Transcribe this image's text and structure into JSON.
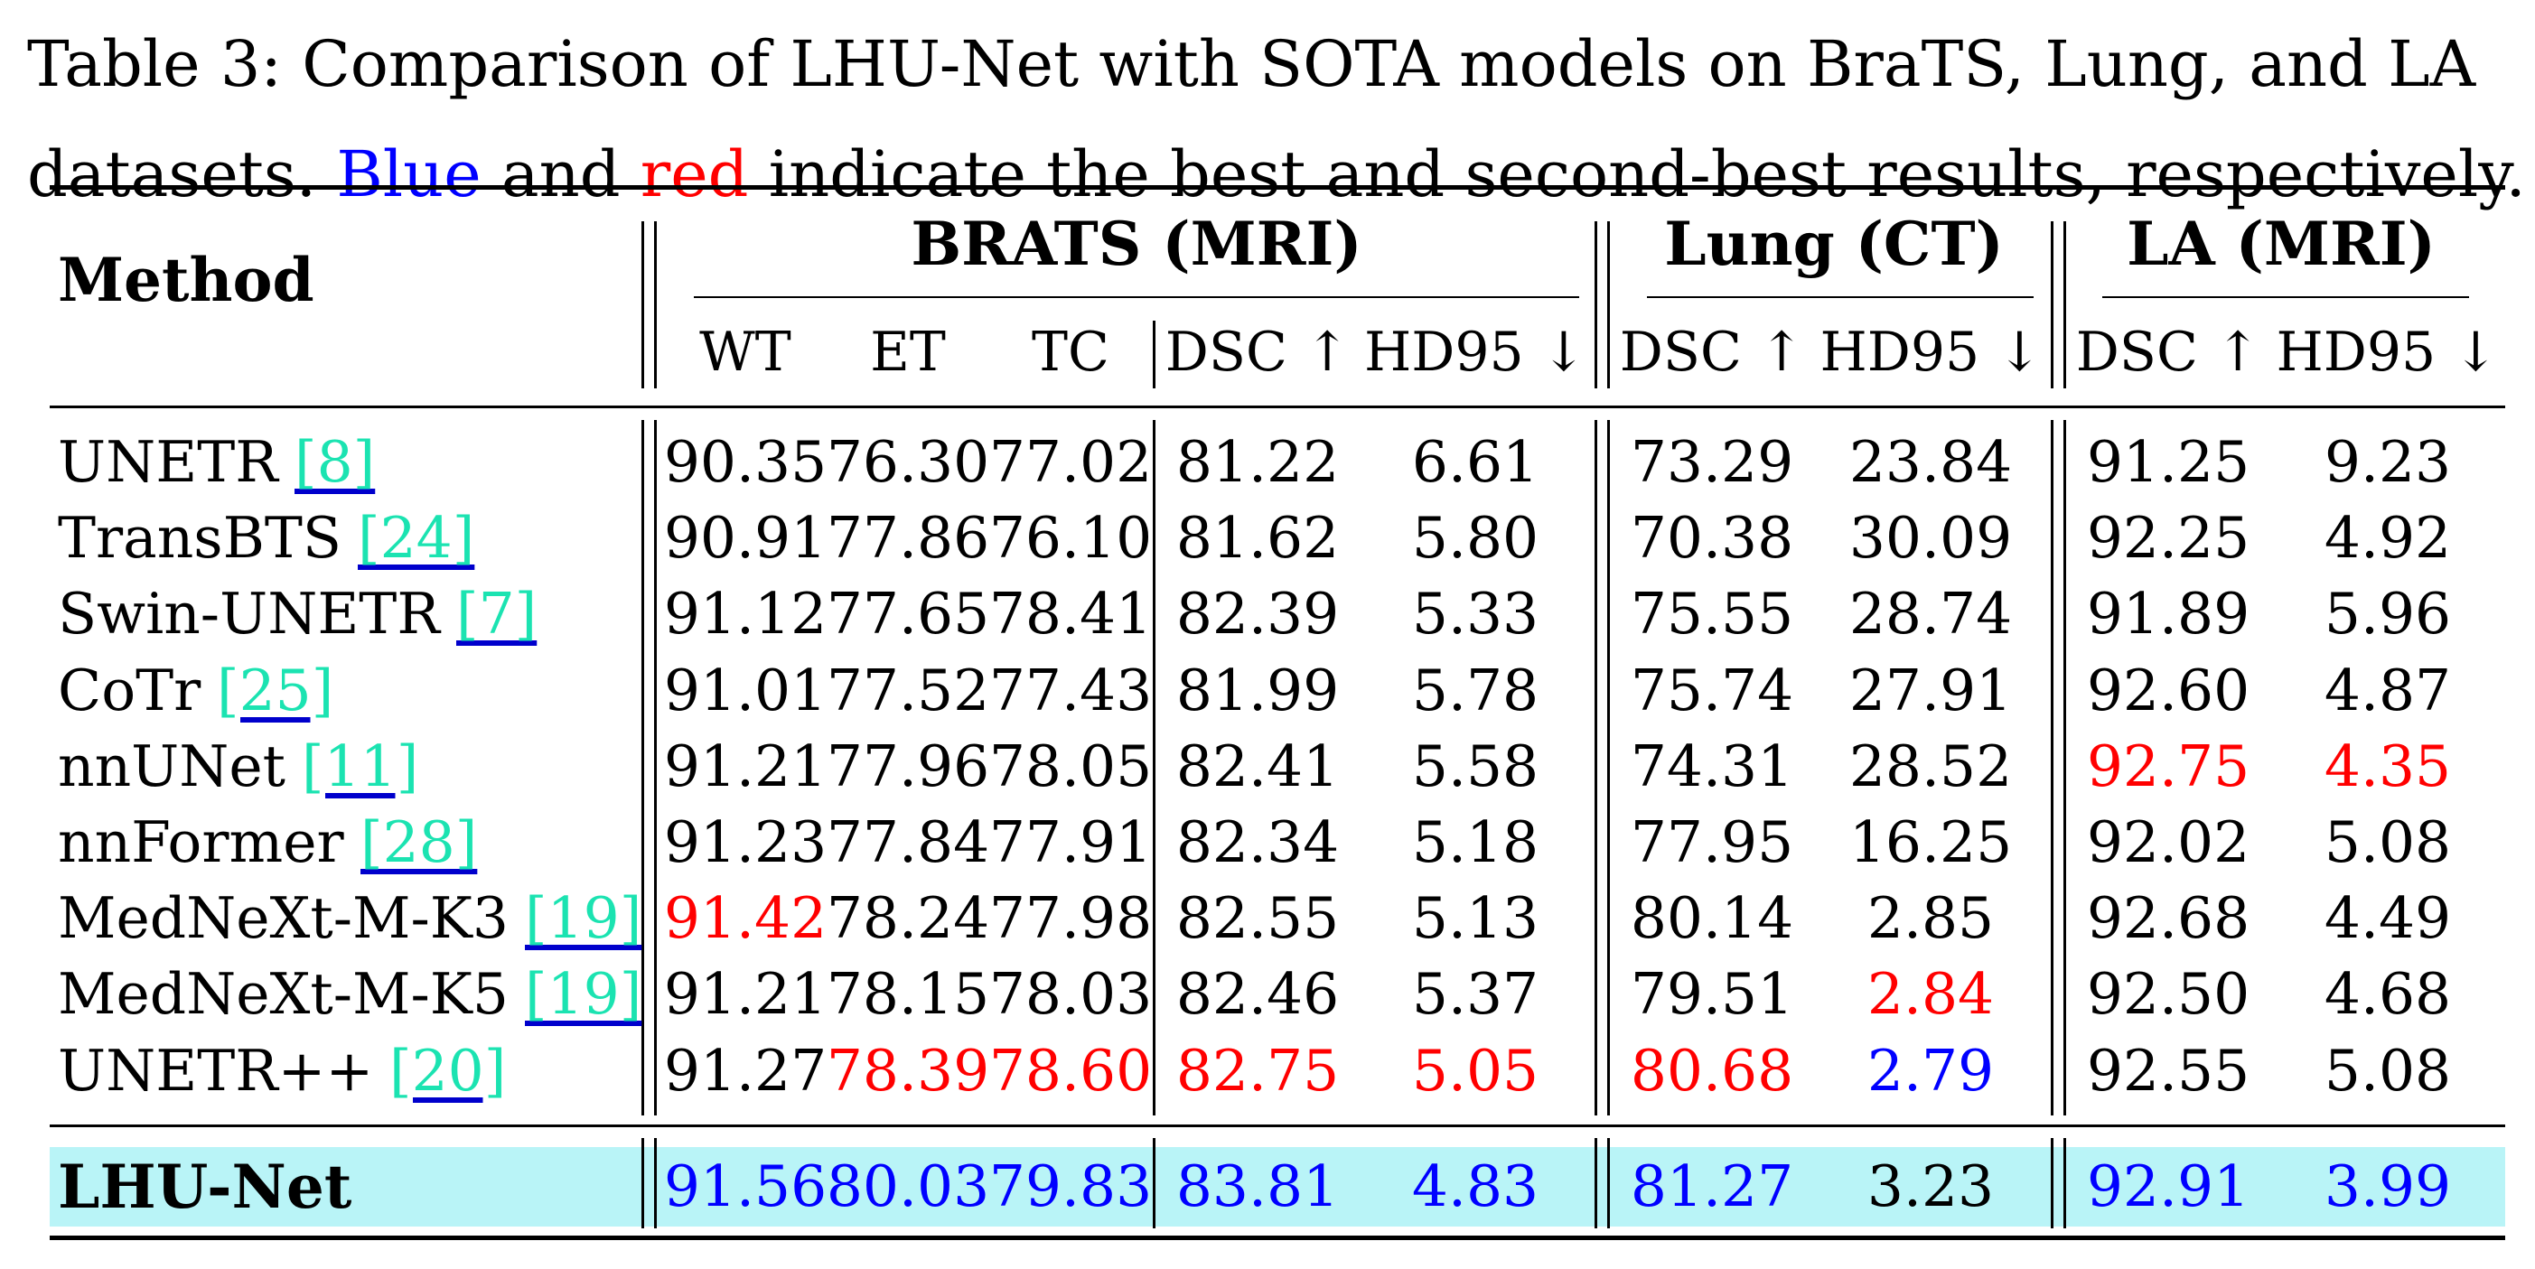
{
  "caption": {
    "line1": "Table 3: Comparison of LHU-Net with SOTA models on BraTS, Lung, and LA",
    "line2_prefix": "datasets. ",
    "line2_blue": "Blue",
    "line2_mid": " and ",
    "line2_red": "red",
    "line2_suffix": " indicate the best and second-best results, respectively."
  },
  "colors": {
    "best": "#0000ff",
    "second": "#ff0000",
    "highlight": "#b9f4f7",
    "citation": "#1be3b1"
  },
  "header": {
    "method": "Method",
    "groups": [
      "BRATS (MRI)",
      "Lung (CT)",
      "LA (MRI)"
    ],
    "brats_cols": [
      "WT",
      "ET",
      "TC",
      "DSC ↑",
      "HD95 ↓"
    ],
    "lung_cols": [
      "DSC ↑",
      "HD95 ↓"
    ],
    "la_cols": [
      "DSC ↑",
      "HD95 ↓"
    ]
  },
  "rows": [
    {
      "method": "UNETR",
      "cite": "[8]",
      "values": [
        "90.35",
        "76.30",
        "77.02",
        "81.22",
        "6.61",
        "73.29",
        "23.84",
        "91.25",
        "9.23"
      ],
      "styles": [
        "",
        "",
        "",
        "",
        "",
        "",
        "",
        "",
        ""
      ]
    },
    {
      "method": "TransBTS",
      "cite": "[24]",
      "values": [
        "90.91",
        "77.86",
        "76.10",
        "81.62",
        "5.80",
        "70.38",
        "30.09",
        "92.25",
        "4.92"
      ],
      "styles": [
        "",
        "",
        "",
        "",
        "",
        "",
        "",
        "",
        ""
      ]
    },
    {
      "method": "Swin-UNETR",
      "cite": "[7]",
      "values": [
        "91.12",
        "77.65",
        "78.41",
        "82.39",
        "5.33",
        "75.55",
        "28.74",
        "91.89",
        "5.96"
      ],
      "styles": [
        "",
        "",
        "",
        "",
        "",
        "",
        "",
        "",
        ""
      ]
    },
    {
      "method": "CoTr",
      "cite": "[25]",
      "values": [
        "91.01",
        "77.52",
        "77.43",
        "81.99",
        "5.78",
        "75.74",
        "27.91",
        "92.60",
        "4.87"
      ],
      "styles": [
        "",
        "",
        "",
        "",
        "",
        "",
        "",
        "",
        ""
      ]
    },
    {
      "method": "nnUNet",
      "cite": "[11]",
      "values": [
        "91.21",
        "77.96",
        "78.05",
        "82.41",
        "5.58",
        "74.31",
        "28.52",
        "92.75",
        "4.35"
      ],
      "styles": [
        "",
        "",
        "",
        "",
        "",
        "",
        "",
        "red",
        "red"
      ]
    },
    {
      "method": "nnFormer",
      "cite": "[28]",
      "values": [
        "91.23",
        "77.84",
        "77.91",
        "82.34",
        "5.18",
        "77.95",
        "16.25",
        "92.02",
        "5.08"
      ],
      "styles": [
        "",
        "",
        "",
        "",
        "",
        "",
        "",
        "",
        ""
      ]
    },
    {
      "method": "MedNeXt-M-K3",
      "cite": "[19]",
      "values": [
        "91.42",
        "78.24",
        "77.98",
        "82.55",
        "5.13",
        "80.14",
        "2.85",
        "92.68",
        "4.49"
      ],
      "styles": [
        "red",
        "",
        "",
        "",
        "",
        "",
        "",
        "",
        ""
      ]
    },
    {
      "method": "MedNeXt-M-K5",
      "cite": "[19]",
      "values": [
        "91.21",
        "78.15",
        "78.03",
        "82.46",
        "5.37",
        "79.51",
        "2.84",
        "92.50",
        "4.68"
      ],
      "styles": [
        "",
        "",
        "",
        "",
        "",
        "",
        "red",
        "",
        ""
      ]
    },
    {
      "method": "UNETR++",
      "cite": "[20]",
      "values": [
        "91.27",
        "78.39",
        "78.60",
        "82.75",
        "5.05",
        "80.68",
        "2.79",
        "92.55",
        "5.08"
      ],
      "styles": [
        "",
        "red",
        "red",
        "red",
        "red",
        "red",
        "blue",
        "",
        ""
      ]
    }
  ],
  "final_row": {
    "method": "LHU-Net",
    "values": [
      "91.56",
      "80.03",
      "79.83",
      "83.81",
      "4.83",
      "81.27",
      "3.23",
      "92.91",
      "3.99"
    ],
    "styles": [
      "blue",
      "blue",
      "blue",
      "blue",
      "blue",
      "blue",
      "",
      "blue",
      "blue"
    ]
  }
}
